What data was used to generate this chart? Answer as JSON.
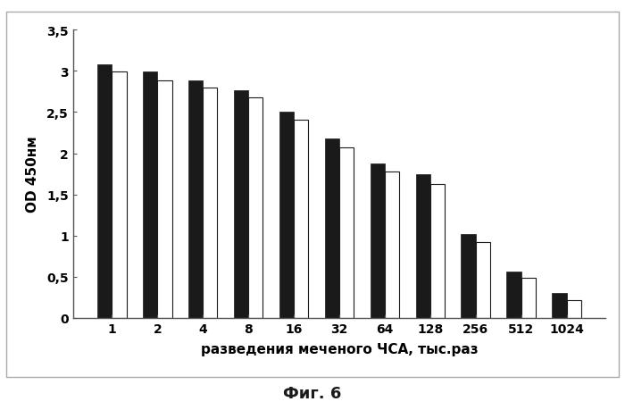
{
  "categories": [
    "1",
    "2",
    "4",
    "8",
    "16",
    "32",
    "64",
    "128",
    "256",
    "512",
    "1024"
  ],
  "dark_values": [
    3.08,
    2.99,
    2.88,
    2.76,
    2.5,
    2.18,
    1.87,
    1.75,
    1.02,
    0.56,
    0.3
  ],
  "light_values": [
    2.99,
    2.88,
    2.8,
    2.68,
    2.41,
    2.07,
    1.78,
    1.63,
    0.92,
    0.49,
    0.22
  ],
  "dark_color": "#1a1a1a",
  "light_color": "#ffffff",
  "bar_edge_color": "#1a1a1a",
  "xlabel": "разведения меченого ЧСА, тыс.раз",
  "ylabel": "OD 450нм",
  "ylim": [
    0,
    3.5
  ],
  "yticks": [
    0,
    0.5,
    1.0,
    1.5,
    2.0,
    2.5,
    3.0,
    3.5
  ],
  "ytick_labels": [
    "0",
    "0,5",
    "1",
    "1,5",
    "2",
    "2,5",
    "3",
    "3,5"
  ],
  "caption": "Фиг. 6",
  "bar_width": 0.32,
  "figure_bg": "#ffffff",
  "border_color": "#aaaaaa"
}
